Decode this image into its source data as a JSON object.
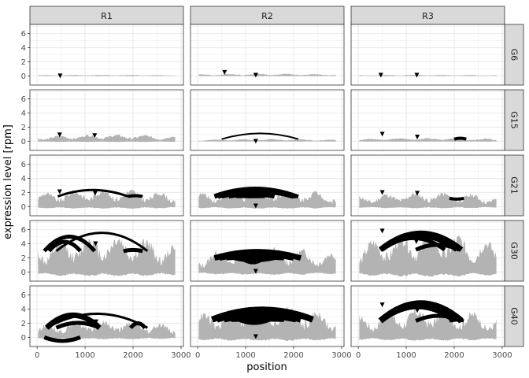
{
  "chart_data": {
    "type": "area",
    "title": "",
    "xlabel": "position",
    "ylabel": "expression level [rpm]",
    "facet_cols": [
      "R1",
      "R2",
      "R3"
    ],
    "facet_rows": [
      "G6",
      "G15",
      "G21",
      "G30",
      "G40"
    ],
    "xlim": [
      -150,
      3050
    ],
    "ylim": [
      -1.3,
      7.3
    ],
    "x_ticks": [
      0,
      1000,
      2000,
      3000
    ],
    "x_tick_labels": [
      "0",
      "1000",
      "2000",
      "3000"
    ],
    "y_ticks": [
      0,
      2,
      4,
      6
    ],
    "y_tick_labels": [
      "0",
      "2",
      "4",
      "6"
    ],
    "grid": true,
    "legend": "none",
    "colors": {
      "coverage": "#b3b3b3",
      "junction": "#000000",
      "strip": "#d9d9d9",
      "grid": "#ebebeb",
      "border": "#333333"
    },
    "panels": [
      {
        "row": "G6",
        "col": "R1",
        "level": 0.1,
        "junctions": [],
        "markers": [
          [
            480,
            0.0
          ]
        ]
      },
      {
        "row": "G6",
        "col": "R2",
        "level": 0.2,
        "junctions": [],
        "markers": [
          [
            560,
            0.5
          ],
          [
            1210,
            0.1
          ]
        ]
      },
      {
        "row": "G6",
        "col": "R3",
        "level": 0.1,
        "junctions": [],
        "markers": [
          [
            470,
            0.1
          ],
          [
            1220,
            0.1
          ]
        ]
      },
      {
        "row": "G15",
        "col": "R1",
        "level": 0.6,
        "junctions": [],
        "markers": [
          [
            470,
            0.9
          ],
          [
            1200,
            0.8
          ]
        ]
      },
      {
        "row": "G15",
        "col": "R2",
        "level": 0.2,
        "junctions": [
          [
            500,
            2100,
            1.5,
            2,
            "up"
          ]
        ],
        "markers": [
          [
            1210,
            0.0
          ]
        ]
      },
      {
        "row": "G15",
        "col": "R3",
        "level": 0.3,
        "junctions": [
          [
            2000,
            2250,
            0.5,
            4,
            "up"
          ]
        ],
        "markers": [
          [
            500,
            1.0
          ],
          [
            1230,
            0.6
          ]
        ]
      },
      {
        "row": "G21",
        "col": "R1",
        "level": 1.6,
        "junctions": [
          [
            430,
            1900,
            2.8,
            3,
            "up"
          ],
          [
            1900,
            2200,
            1.6,
            4,
            "up"
          ]
        ],
        "markers": [
          [
            470,
            2.1
          ],
          [
            1210,
            1.9
          ]
        ]
      },
      {
        "row": "G21",
        "col": "R2",
        "level": 1.6,
        "junctions": [
          [
            350,
            2050,
            3.0,
            6,
            "up"
          ],
          [
            420,
            2000,
            2.6,
            6,
            "up"
          ],
          [
            500,
            2100,
            2.3,
            5,
            "up"
          ],
          [
            650,
            1600,
            1.8,
            5,
            "up"
          ],
          [
            800,
            1400,
            1.4,
            4,
            "up"
          ]
        ],
        "markers": [
          [
            1210,
            0.1
          ]
        ]
      },
      {
        "row": "G21",
        "col": "R3",
        "level": 1.3,
        "junctions": [
          [
            1900,
            2200,
            1.0,
            4,
            "up"
          ]
        ],
        "markers": [
          [
            500,
            2.0
          ],
          [
            1230,
            1.9
          ]
        ]
      },
      {
        "row": "G30",
        "col": "R1",
        "level": 3.3,
        "junctions": [
          [
            150,
            1200,
            6.0,
            5,
            "up"
          ],
          [
            400,
            2300,
            6.8,
            3,
            "up"
          ],
          [
            250,
            900,
            4.9,
            5,
            "up"
          ],
          [
            1800,
            2200,
            3.2,
            5,
            "up"
          ]
        ],
        "markers": [
          [
            480,
            4.5
          ],
          [
            1220,
            4.0
          ]
        ]
      },
      {
        "row": "G30",
        "col": "R2",
        "level": 2.2,
        "junctions": [
          [
            350,
            2150,
            3.3,
            7,
            "up"
          ],
          [
            450,
            2000,
            2.8,
            7,
            "up"
          ],
          [
            600,
            1800,
            2.2,
            6,
            "up"
          ],
          [
            750,
            1600,
            1.5,
            5,
            "up"
          ],
          [
            900,
            1400,
            1.0,
            4,
            "up"
          ]
        ],
        "markers": [
          [
            1210,
            0.1
          ]
        ]
      },
      {
        "row": "G30",
        "col": "R3",
        "level": 3.5,
        "junctions": [
          [
            460,
            2150,
            6.6,
            7,
            "up"
          ],
          [
            460,
            2050,
            6.1,
            6,
            "up"
          ],
          [
            500,
            1800,
            5.6,
            5,
            "up"
          ],
          [
            1200,
            2100,
            4.2,
            5,
            "up"
          ]
        ],
        "markers": [
          [
            500,
            5.8
          ],
          [
            1210,
            4.3
          ]
        ]
      },
      {
        "row": "G40",
        "col": "R1",
        "level": 1.5,
        "junctions": [
          [
            200,
            1300,
            4.0,
            7,
            "up"
          ],
          [
            200,
            2300,
            4.3,
            3,
            "up"
          ],
          [
            400,
            1300,
            2.4,
            5,
            "up"
          ],
          [
            150,
            900,
            -1.0,
            5,
            "down"
          ],
          [
            1950,
            2250,
            2.3,
            5,
            "up"
          ]
        ],
        "markers": [
          [
            440,
            2.2
          ],
          [
            1230,
            2.2
          ]
        ]
      },
      {
        "row": "G40",
        "col": "R2",
        "level": 2.8,
        "junctions": [
          [
            300,
            2400,
            4.6,
            8,
            "up"
          ],
          [
            400,
            2150,
            4.0,
            8,
            "up"
          ],
          [
            550,
            2050,
            3.3,
            7,
            "up"
          ],
          [
            700,
            1800,
            2.6,
            6,
            "up"
          ],
          [
            850,
            1500,
            1.8,
            5,
            "up"
          ]
        ],
        "markers": [
          [
            470,
            2.7
          ],
          [
            1210,
            0.1
          ]
        ]
      },
      {
        "row": "G40",
        "col": "R3",
        "level": 2.6,
        "junctions": [
          [
            460,
            2150,
            6.0,
            8,
            "up"
          ],
          [
            480,
            2000,
            5.3,
            6,
            "up"
          ],
          [
            1200,
            2150,
            3.4,
            5,
            "up"
          ],
          [
            1900,
            2200,
            2.5,
            4,
            "up"
          ]
        ],
        "markers": [
          [
            500,
            4.6
          ],
          [
            1230,
            3.8
          ]
        ]
      }
    ]
  }
}
